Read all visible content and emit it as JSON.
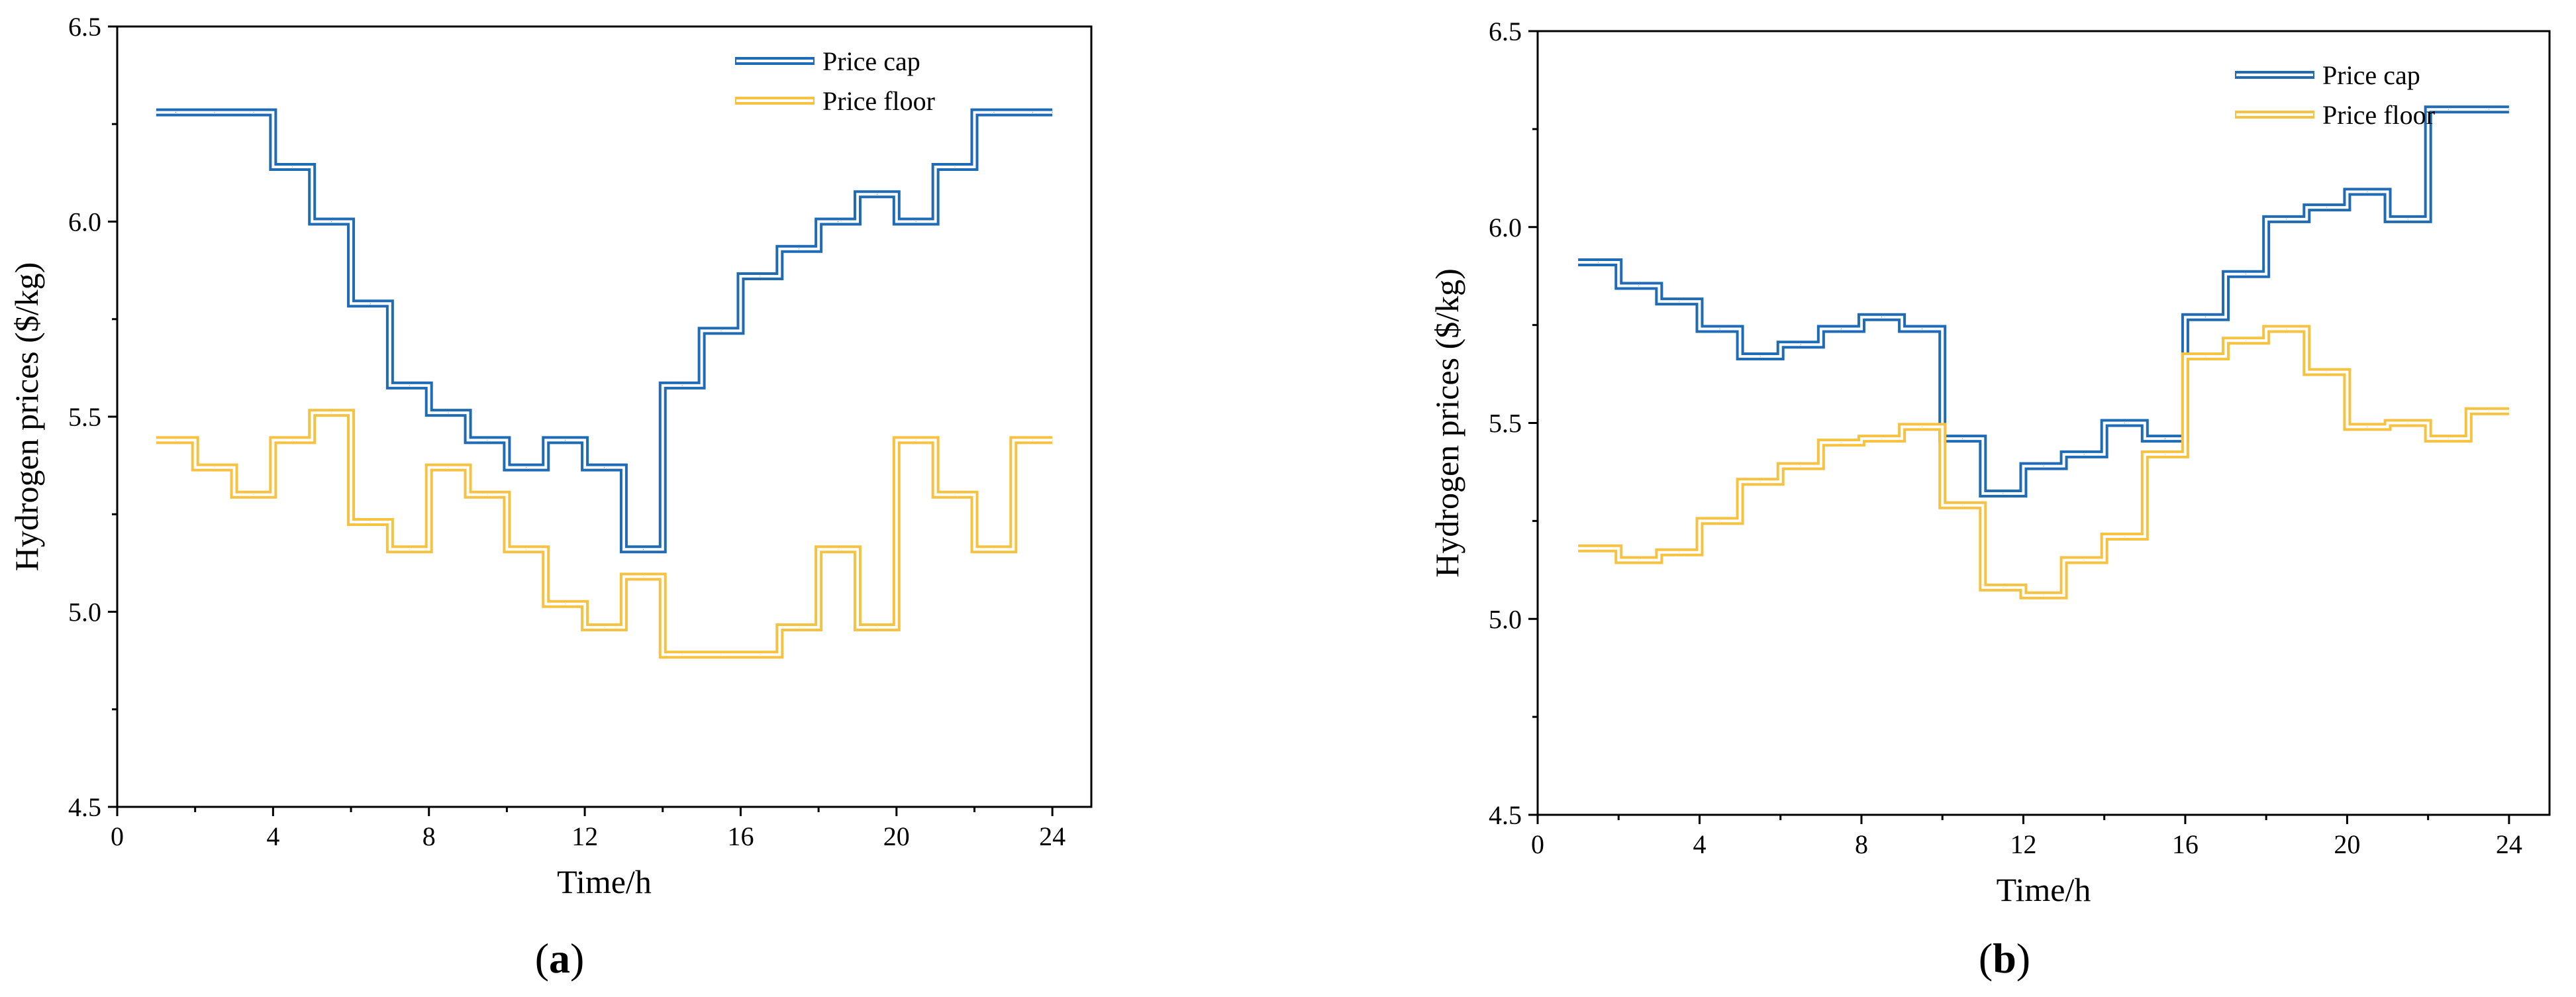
{
  "chart_data": [
    {
      "type": "line",
      "step": true,
      "panel": "a",
      "title": "",
      "xlabel": "Time/h",
      "ylabel": "Hydrogen prices ($/kg)",
      "xlim": [
        0,
        25
      ],
      "ylim": [
        4.5,
        6.5
      ],
      "xticks": [
        0,
        4,
        8,
        12,
        16,
        20,
        24
      ],
      "yticks": [
        4.5,
        5.0,
        5.5,
        6.0,
        6.5
      ],
      "ytick_labels": [
        "4.5",
        "5.0",
        "5.5",
        "6.0",
        "6.5"
      ],
      "legend_position": "top-right",
      "x": [
        1,
        2,
        3,
        4,
        5,
        6,
        7,
        8,
        9,
        10,
        11,
        12,
        13,
        14,
        15,
        16,
        17,
        18,
        19,
        20,
        21,
        22,
        23,
        24
      ],
      "series": [
        {
          "name": "Price cap",
          "color": "#1f6bb5",
          "values": [
            6.28,
            6.28,
            6.28,
            6.14,
            6.0,
            5.79,
            5.58,
            5.51,
            5.44,
            5.37,
            5.44,
            5.37,
            5.16,
            5.58,
            5.72,
            5.86,
            5.93,
            6.0,
            6.07,
            6.0,
            6.14,
            6.28,
            6.28,
            6.28
          ]
        },
        {
          "name": "Price floor",
          "color": "#f5c242",
          "values": [
            5.44,
            5.37,
            5.3,
            5.44,
            5.51,
            5.23,
            5.16,
            5.37,
            5.3,
            5.16,
            5.02,
            4.96,
            5.09,
            4.89,
            4.89,
            4.89,
            4.96,
            5.16,
            4.96,
            5.44,
            5.3,
            5.16,
            5.44,
            5.44
          ]
        }
      ]
    },
    {
      "type": "line",
      "step": true,
      "panel": "b",
      "title": "",
      "xlabel": "Time/h",
      "ylabel": "Hydrogen prices ($/kg)",
      "xlim": [
        0,
        25
      ],
      "ylim": [
        4.5,
        6.5
      ],
      "xticks": [
        0,
        4,
        8,
        12,
        16,
        20,
        24
      ],
      "yticks": [
        4.5,
        5.0,
        5.5,
        6.0,
        6.5
      ],
      "ytick_labels": [
        "4.5",
        "5.0",
        "5.5",
        "6.0",
        "6.5"
      ],
      "legend_position": "top-right",
      "x": [
        1,
        2,
        3,
        4,
        5,
        6,
        7,
        8,
        9,
        10,
        11,
        12,
        13,
        14,
        15,
        16,
        17,
        18,
        19,
        20,
        21,
        22,
        23,
        24
      ],
      "series": [
        {
          "name": "Price cap",
          "color": "#1f6bb5",
          "values": [
            5.91,
            5.85,
            5.81,
            5.74,
            5.67,
            5.7,
            5.74,
            5.77,
            5.74,
            5.46,
            5.32,
            5.39,
            5.42,
            5.5,
            5.46,
            5.77,
            5.88,
            6.02,
            6.05,
            6.09,
            6.02,
            6.3,
            6.3,
            6.3
          ]
        },
        {
          "name": "Price floor",
          "color": "#f5c242",
          "values": [
            5.18,
            5.15,
            5.17,
            5.25,
            5.35,
            5.39,
            5.45,
            5.46,
            5.49,
            5.29,
            5.08,
            5.06,
            5.15,
            5.21,
            5.42,
            5.67,
            5.71,
            5.74,
            5.63,
            5.49,
            5.5,
            5.46,
            5.53,
            5.53
          ]
        }
      ]
    }
  ],
  "panel_labels": {
    "a": "a",
    "b": "b"
  }
}
